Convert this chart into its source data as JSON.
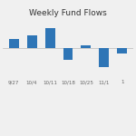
{
  "title": "Weekly Fund Flows",
  "categories": [
    "9/27",
    "10/4",
    "10/11",
    "10/18",
    "10/25",
    "11/1",
    "1"
  ],
  "values": [
    0.9,
    1.3,
    2.0,
    -1.1,
    0.25,
    -1.8,
    -0.5
  ],
  "bar_color": "#2E75B6",
  "background_color": "#f0f0f0",
  "title_fontsize": 6.5,
  "tick_fontsize": 4.0,
  "ylim": [
    -3.0,
    3.0
  ],
  "bar_width": 0.55
}
